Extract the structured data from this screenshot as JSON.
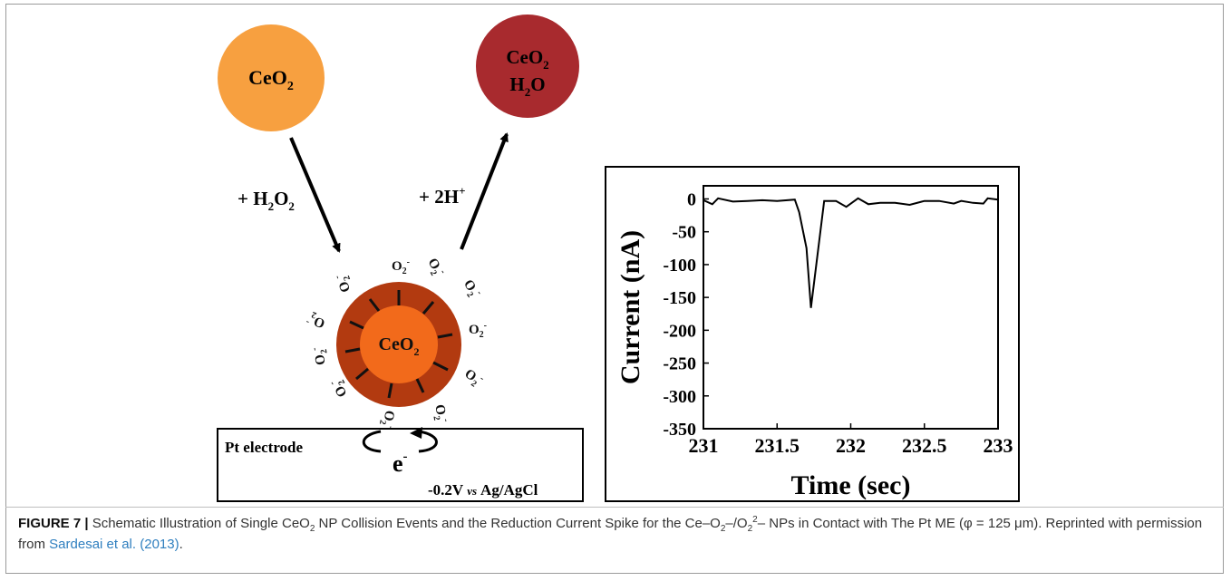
{
  "figure": {
    "particle_initial": {
      "label": "CeO",
      "sub": "2"
    },
    "particle_final": {
      "line1": "CeO",
      "line1_sub": "2",
      "line2_a": "H",
      "line2_sub": "2",
      "line2_b": "O"
    },
    "reagent_left": {
      "a": "+ H",
      "sub": "2",
      "b": "O",
      "sub2": "2"
    },
    "reagent_right": {
      "a": "+ 2H",
      "sup": "+"
    },
    "core_label": {
      "a": "CeO",
      "sub": "2"
    },
    "superoxide": {
      "a": "O",
      "sub": "2",
      "sup": "-"
    },
    "electrode_label": "Pt electrode",
    "electron_label": "e",
    "electron_sup": "-",
    "potential": {
      "a": "-0.2V",
      "vs": "vs",
      "b": "Ag/AgCl"
    },
    "colors": {
      "particle_initial": "#F7A040",
      "particle_final": "#A82A2E",
      "shell": "#B23A10",
      "core": "#F26A1B"
    }
  },
  "chart_data": {
    "type": "line",
    "xlabel": "Time (sec)",
    "ylabel": "Current (nA)",
    "xlim": [
      231,
      233
    ],
    "ylim": [
      -350,
      20
    ],
    "xticks": [
      "231",
      "231.5",
      "232",
      "232.5",
      "233"
    ],
    "yticks": [
      "0",
      "-50",
      "-100",
      "-150",
      "-200",
      "-250",
      "-300",
      "-350"
    ],
    "series": [
      {
        "x": [
          231.0,
          231.06,
          231.1,
          231.2,
          231.3,
          231.4,
          231.5,
          231.62,
          231.65,
          231.7,
          231.73,
          231.82,
          231.9,
          231.97,
          232.05,
          232.12,
          232.2,
          232.3,
          232.4,
          232.5,
          232.6,
          232.7,
          232.75,
          232.83,
          232.9,
          232.93,
          233.0
        ],
        "y": [
          -2,
          -8,
          1,
          -4,
          -3,
          -2,
          -3,
          -1,
          -20,
          -75,
          -166,
          -3,
          -3,
          -12,
          1,
          -8,
          -6,
          -6,
          -9,
          -3,
          -3,
          -7,
          -3,
          -6,
          -7,
          1,
          -1
        ]
      }
    ]
  },
  "caption": {
    "label": "FIGURE 7 |",
    "t1": " Schematic Illustration of Single CeO",
    "t1_sub": "2",
    "t2": " NP Collision Events and the Reduction Current Spike for the Ce–O",
    "t2_sub": "2",
    "t3": "–/O",
    "t3_sub": "2",
    "t3_sup": "2",
    "t4": "– NPs in Contact with The Pt ME (φ = 125 μm). Reprinted with permission from ",
    "link": "Sardesai et al. (2013)",
    "t5": "."
  }
}
